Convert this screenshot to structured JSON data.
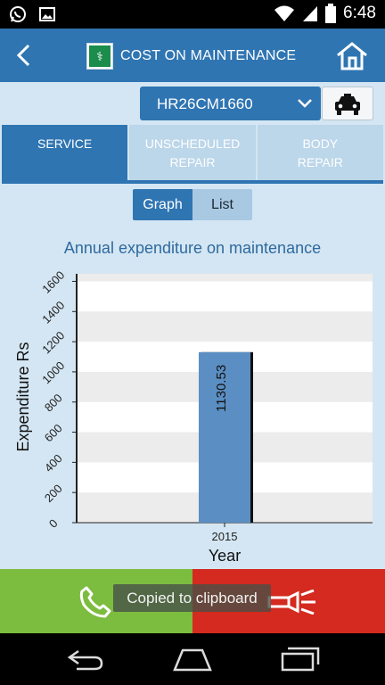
{
  "status_bar": {
    "time": "6:48",
    "icons": [
      "whatsapp-icon",
      "image-icon",
      "wifi-icon",
      "signal-icon",
      "battery-icon"
    ]
  },
  "app_bar": {
    "title": "COST ON MAINTENANCE",
    "back_icon": "back-chevron-icon",
    "home_icon": "home-icon",
    "logo_icon": "app-logo-icon"
  },
  "vehicle_selector": {
    "selected": "HR26CM1660",
    "car_icon": "taxi-icon"
  },
  "tabs": [
    {
      "label_line1": "SERVICE",
      "label_line2": "",
      "active": true
    },
    {
      "label_line1": "UNSCHEDULED",
      "label_line2": "REPAIR",
      "active": false
    },
    {
      "label_line1": "BODY",
      "label_line2": "REPAIR",
      "active": false
    }
  ],
  "view_toggle": {
    "graph_label": "Graph",
    "list_label": "List",
    "selected": "Graph"
  },
  "chart_title": "Annual expenditure on maintenance",
  "chart_data": {
    "type": "bar",
    "title": "Annual expenditure on maintenance",
    "xlabel": "Year",
    "ylabel": "Expenditure Rs",
    "categories": [
      "2015"
    ],
    "values": [
      1130.53
    ],
    "data_labels": [
      "1130.53"
    ],
    "yticks": [
      "0",
      "200",
      "400",
      "600",
      "800",
      "1000",
      "1200",
      "1400",
      "1600"
    ],
    "ylim": [
      0,
      1650
    ],
    "grid": true,
    "bar_color": "#5b8fc3"
  },
  "actions": {
    "call_icon": "phone-icon",
    "torch_icon": "flashlight-icon",
    "call_color": "#7cbc3f",
    "torch_color": "#d42a1f"
  },
  "toast": "Copied to clipboard",
  "nav_bar": {
    "back_icon": "nav-back-icon",
    "home_icon": "nav-home-icon",
    "recents_icon": "nav-recents-icon"
  }
}
